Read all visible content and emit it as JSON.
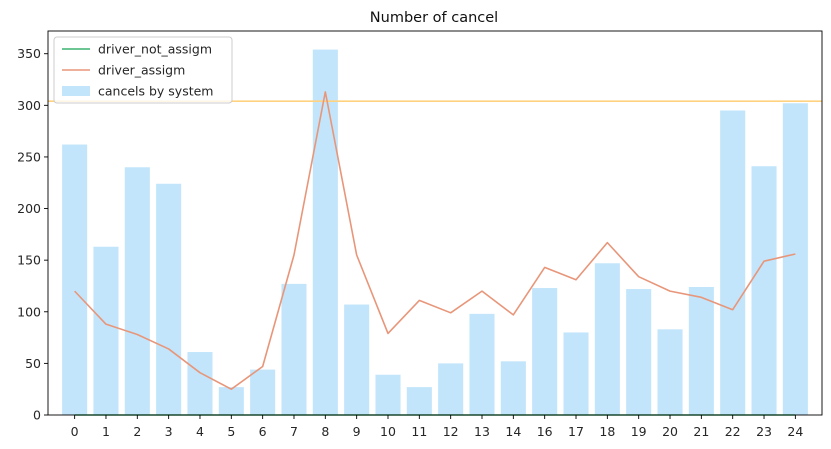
{
  "chart_data": {
    "type": "bar",
    "title": "Number of cancel",
    "xlabel": "",
    "ylabel": "",
    "categories": [
      "0",
      "1",
      "2",
      "3",
      "4",
      "5",
      "6",
      "7",
      "8",
      "9",
      "10",
      "11",
      "12",
      "13",
      "14",
      "16",
      "17",
      "18",
      "19",
      "20",
      "21",
      "22",
      "23",
      "24"
    ],
    "ylim": [
      0,
      372
    ],
    "yticks": [
      0,
      50,
      100,
      150,
      200,
      250,
      300,
      350
    ],
    "grid": false,
    "legend_position": "top-left",
    "reference_line": {
      "y": 304,
      "color": "#ffd280"
    },
    "series": [
      {
        "name": "cancels by system",
        "kind": "bar",
        "color": "#c2e5fb",
        "values": [
          262,
          163,
          240,
          224,
          61,
          27,
          44,
          127,
          354,
          107,
          39,
          27,
          50,
          98,
          52,
          123,
          80,
          147,
          122,
          83,
          124,
          295,
          241,
          302
        ]
      },
      {
        "name": "driver_not_assigm",
        "kind": "line",
        "color": "#3cb371",
        "values": [
          0,
          0,
          0,
          0,
          0,
          0,
          0,
          0,
          0,
          0,
          0,
          0,
          0,
          0,
          0,
          0,
          0,
          0,
          0,
          0,
          0,
          0,
          0,
          0
        ]
      },
      {
        "name": "driver_assigm",
        "kind": "line",
        "color": "#e8967a",
        "values": [
          120,
          88,
          78,
          64,
          41,
          25,
          47,
          155,
          313,
          155,
          79,
          111,
          99,
          120,
          97,
          143,
          131,
          167,
          134,
          120,
          114,
          102,
          149,
          156
        ]
      }
    ]
  }
}
